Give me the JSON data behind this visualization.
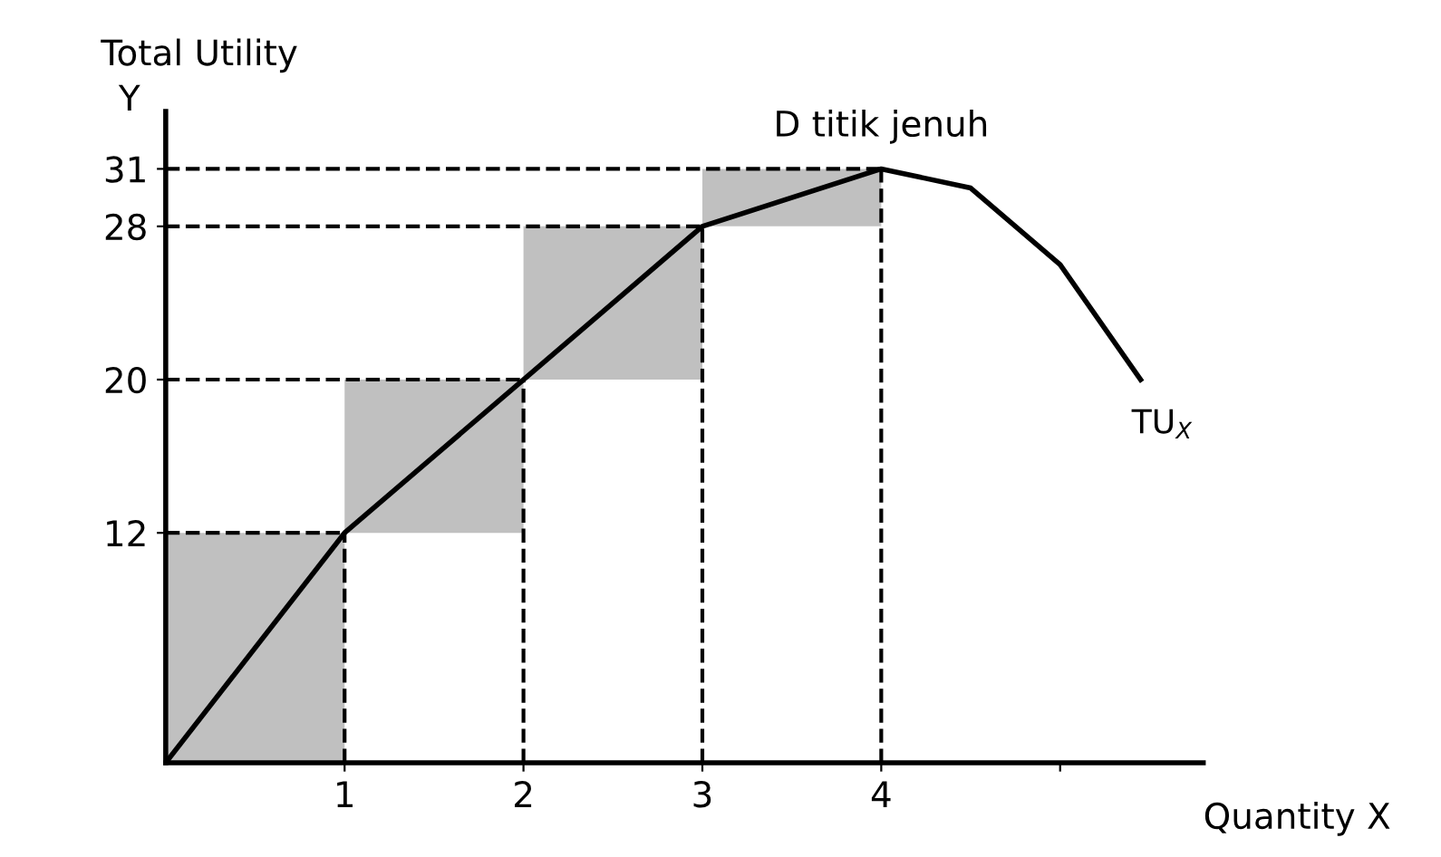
{
  "chart_data": {
    "type": "line",
    "title": "Total Utility",
    "ylabel": "Y",
    "xlabel": "Quantity X",
    "series": [
      {
        "type": "bar",
        "color": "#c0c0c0",
        "x": [
          0.5,
          1.5,
          2.5,
          3.5
        ],
        "values": [
          12,
          8,
          8,
          3
        ],
        "base": [
          0,
          12,
          20,
          28
        ]
      },
      {
        "name": "TU$_{X}$",
        "color": "#000000",
        "x": [
          0,
          1,
          2,
          3,
          4,
          4.5,
          5,
          5.45
        ],
        "values": [
          0,
          12,
          20,
          28,
          31,
          30,
          26,
          20
        ]
      }
    ],
    "annotations": [
      {
        "text": "D titik jenuh",
        "x": 4,
        "y": 31
      }
    ],
    "ref_lines": [
      {
        "axis": "y",
        "value": 12,
        "line_style": "dashed"
      },
      {
        "axis": "y",
        "value": 20,
        "line_style": "dashed"
      },
      {
        "axis": "y",
        "value": 28,
        "line_style": "dashed"
      },
      {
        "axis": "y",
        "value": 31,
        "line_style": "dashed"
      },
      {
        "axis": "x",
        "value": 1,
        "line_style": "dashed"
      },
      {
        "axis": "x",
        "value": 2,
        "line_style": "dashed"
      },
      {
        "axis": "x",
        "value": 3,
        "line_style": "dashed"
      },
      {
        "axis": "x",
        "value": 4,
        "line_style": "dashed"
      }
    ],
    "xlim": [
      0,
      5.8
    ],
    "ylim": [
      0,
      34
    ],
    "xticks": [
      1,
      2,
      3,
      4,
      {
        "value": 5,
        "label": null
      }
    ],
    "yticks": [
      12,
      20,
      28,
      31
    ],
    "grid": false,
    "legend": false,
    "marker": "none",
    "line_style": "solid"
  }
}
